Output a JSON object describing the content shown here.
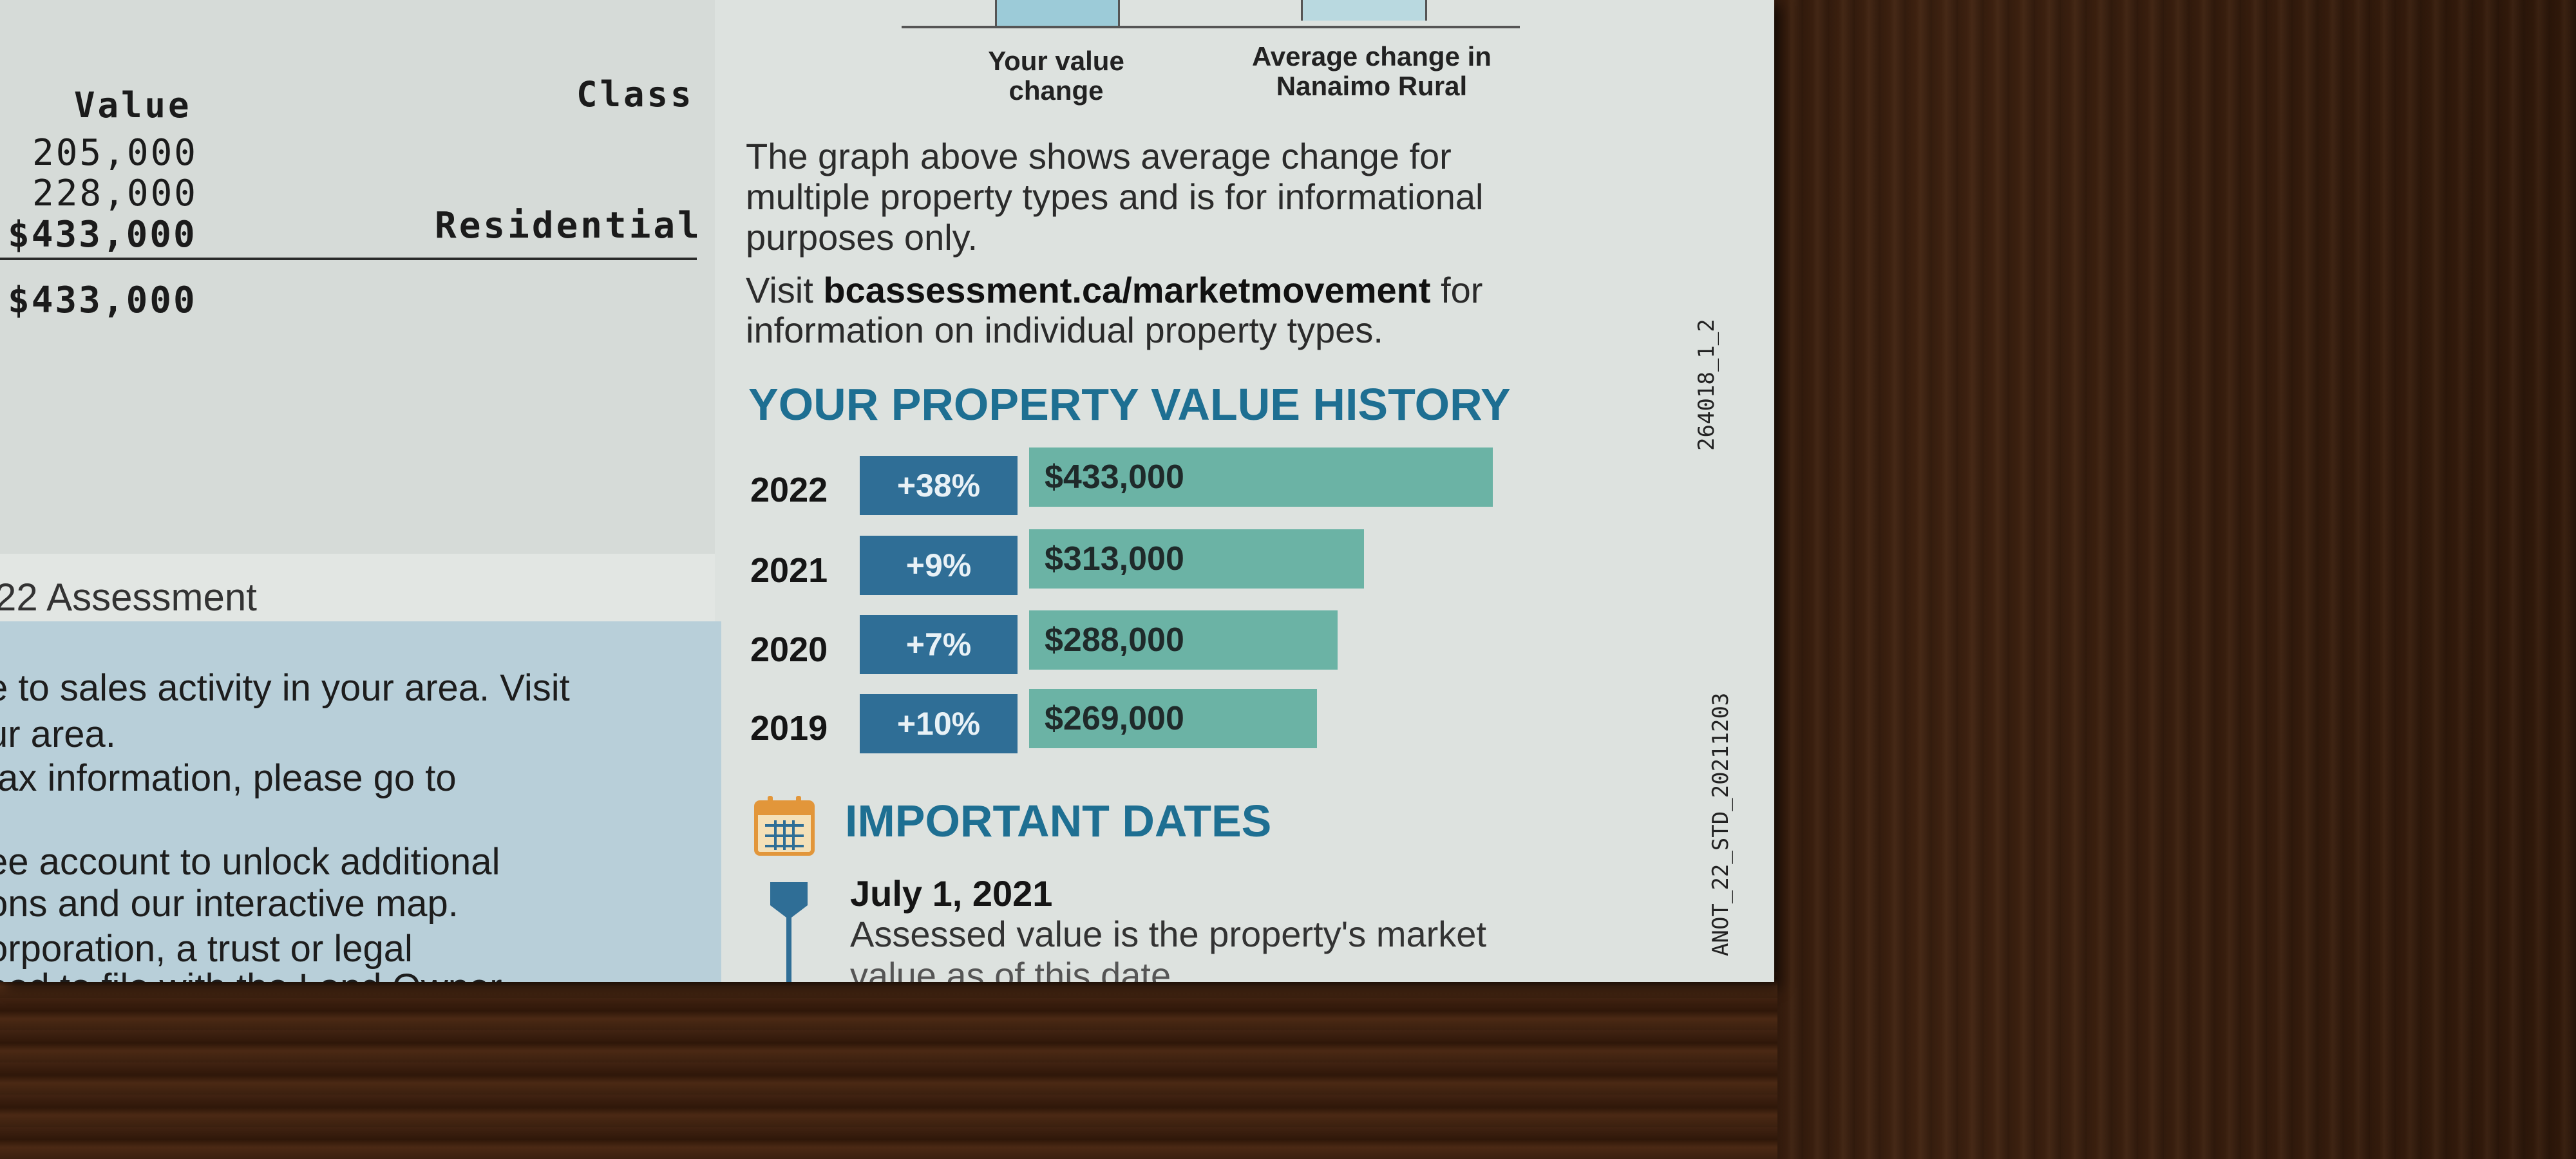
{
  "values_table": {
    "header_value": "Value",
    "header_class": "Class",
    "land": "205,000",
    "improvements": "228,000",
    "subtotal": "$433,000",
    "class_name": "Residential",
    "total": "$433,000"
  },
  "assessment_section": {
    "heading_partial": "22 Assessment",
    "lines": [
      "e to sales activity in your area. Visit",
      "ur area.",
      "tax information, please go to",
      "ee account to unlock additional",
      "ons and our interactive map.",
      "orporation, a trust or legal",
      "eed to file with the Land Owner"
    ]
  },
  "market_chart": {
    "label_left": [
      "Your value",
      "change"
    ],
    "label_right": [
      "Average change in",
      "Nanaimo Rural"
    ],
    "colors": {
      "your_value": "#9ccbd8",
      "average": "#b9d9e0"
    }
  },
  "info_text": {
    "line1": "The graph above shows average change for",
    "line2": "multiple property types and is for informational",
    "line3": "purposes only.",
    "visit_prefix": "Visit ",
    "visit_link": "bcassessment.ca/marketmovement",
    "visit_suffix": " for",
    "visit_line2": "information on individual property types."
  },
  "history": {
    "title": "YOUR PROPERTY VALUE HISTORY",
    "rows": [
      {
        "year": "2022",
        "change": "+38%",
        "value": "$433,000",
        "amount": 433000
      },
      {
        "year": "2021",
        "change": "+9%",
        "value": "$313,000",
        "amount": 313000
      },
      {
        "year": "2020",
        "change": "+7%",
        "value": "$288,000",
        "amount": 288000
      },
      {
        "year": "2019",
        "change": "+10%",
        "value": "$269,000",
        "amount": 269000
      }
    ],
    "colors": {
      "pct_bg": "#2f6e96",
      "bar_bg": "#6bb3a5",
      "title": "#1e6f92"
    }
  },
  "important_dates": {
    "title": "IMPORTANT DATES",
    "icon": "calendar-icon",
    "entries": [
      {
        "date": "July 1, 2021",
        "desc": "Assessed value is the property's market",
        "desc2": "value as of this date"
      }
    ]
  },
  "side_codes": {
    "code1": "264018_1_2",
    "code2": "ANOT_22_STD_20211203"
  }
}
